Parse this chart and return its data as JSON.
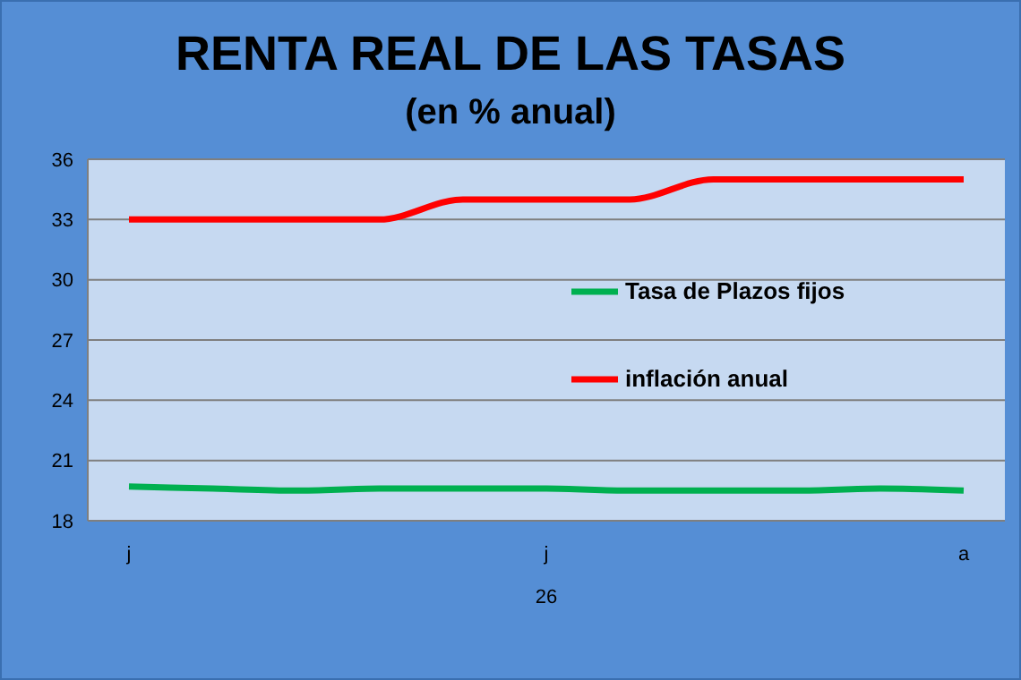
{
  "chart_data": {
    "type": "line",
    "title": "RENTA REAL DE LAS TASAS",
    "subtitle": "(en % anual)",
    "xlabel": "26",
    "categories": [
      "j",
      null,
      null,
      null,
      null,
      "j",
      null,
      null,
      null,
      null,
      "a"
    ],
    "series": [
      {
        "name": "Tasa de Plazos fijos",
        "color": "#00b050",
        "values": [
          19.7,
          19.6,
          19.5,
          19.6,
          19.6,
          19.6,
          19.5,
          19.5,
          19.5,
          19.6,
          19.5
        ]
      },
      {
        "name": "inflación anual",
        "color": "#ff0000",
        "values": [
          33,
          33,
          33,
          33,
          34,
          34,
          34,
          35,
          35,
          35,
          35
        ]
      }
    ],
    "ylim": [
      18,
      36
    ],
    "yticks": [
      18,
      21,
      24,
      27,
      30,
      33,
      36
    ],
    "grid": "y",
    "legend": "right",
    "marker": "none",
    "line_style": "solid"
  }
}
